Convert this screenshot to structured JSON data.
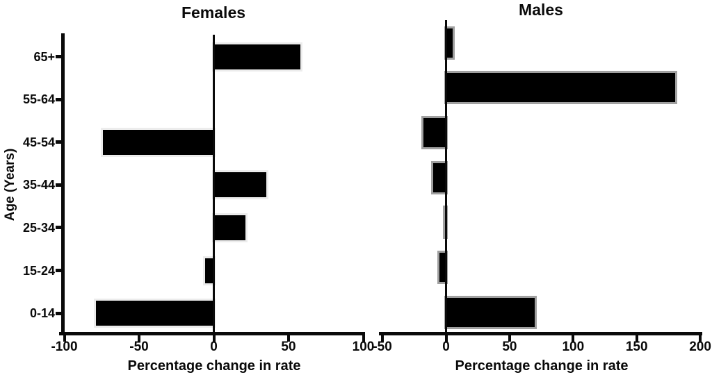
{
  "figure": {
    "background": "#ffffff",
    "text_color": "#0a0a0a",
    "bar_fill": "#000000"
  },
  "chart_data": [
    {
      "type": "bar",
      "orientation": "horizontal",
      "title": "Females",
      "xlabel": "Percentage change in rate",
      "ylabel": "Age (Years)",
      "categories_top_to_bottom": [
        "65+",
        "55-64",
        "45-54",
        "35-44",
        "25-34",
        "15-24",
        "0-14"
      ],
      "values": [
        58,
        0,
        -74,
        35,
        21,
        -6,
        -79
      ],
      "xlim": [
        -100,
        100
      ],
      "x_ticks": [
        -100,
        -50,
        0,
        50,
        100
      ],
      "grid": false,
      "legend": false,
      "bar_fill": "#000000",
      "bar_border": "#ececec",
      "show_left_spine": true
    },
    {
      "type": "bar",
      "orientation": "horizontal",
      "title": "Males",
      "xlabel": "Percentage change in rate",
      "ylabel": "",
      "categories_top_to_bottom": [
        "65+",
        "55-64",
        "45-54",
        "35-44",
        "25-34",
        "15-24",
        "0-14"
      ],
      "values": [
        5,
        180,
        -18,
        -10,
        -1,
        -5,
        70
      ],
      "xlim": [
        -50,
        200
      ],
      "x_ticks": [
        -50,
        0,
        50,
        100,
        150,
        200
      ],
      "grid": false,
      "legend": false,
      "bar_fill": "#000000",
      "bar_border": "#a0a0a0",
      "show_left_spine": false
    }
  ]
}
